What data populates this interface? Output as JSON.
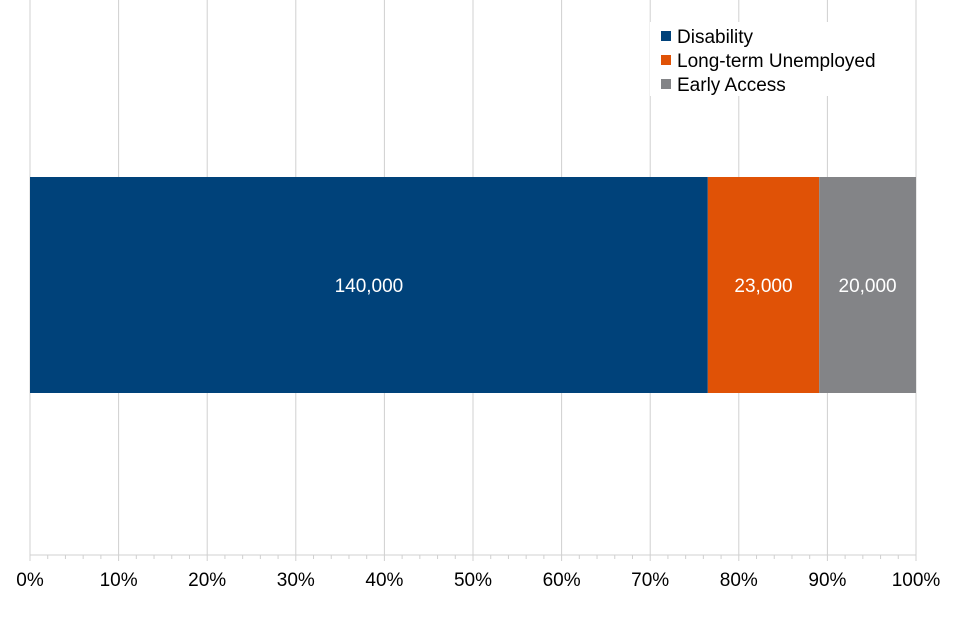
{
  "chart_data": {
    "type": "bar",
    "orientation": "horizontal",
    "stacked": true,
    "normalized": true,
    "categories": [
      ""
    ],
    "series": [
      {
        "name": "Disability",
        "values": [
          140000
        ],
        "label": "140,000",
        "color": "#00427a"
      },
      {
        "name": "Long-term Unemployed",
        "values": [
          23000
        ],
        "label": "23,000",
        "color": "#e05206"
      },
      {
        "name": "Early Access",
        "values": [
          20000
        ],
        "label": "20,000",
        "color": "#838487"
      }
    ],
    "xlim": [
      0,
      100
    ],
    "x_ticks": [
      "0%",
      "10%",
      "20%",
      "30%",
      "40%",
      "50%",
      "60%",
      "70%",
      "80%",
      "90%",
      "100%"
    ],
    "grid": true,
    "legend": "top-right",
    "title": "",
    "xlabel": "",
    "ylabel": ""
  }
}
